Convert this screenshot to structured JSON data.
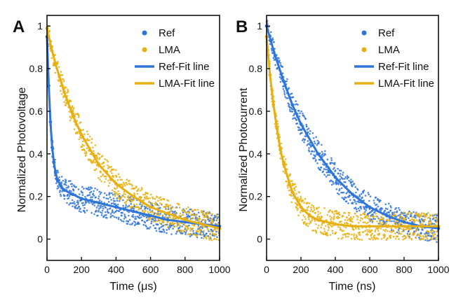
{
  "chart_data": [
    {
      "panel": "A",
      "type": "scatter",
      "xlabel": "Time (μs)",
      "ylabel": "Normalized Photovoltage",
      "xlim": [
        0,
        1000
      ],
      "ylim": [
        -0.1,
        1.05
      ],
      "xticks": [
        0,
        200,
        400,
        600,
        800,
        1000
      ],
      "yticks": [
        0,
        0.2,
        0.4,
        0.6,
        0.8,
        1
      ],
      "legend_position": "top-right",
      "series": [
        {
          "name": "Ref",
          "kind": "scatter",
          "color": "#2f74d9",
          "x": [
            0,
            10,
            20,
            30,
            40,
            50,
            60,
            80,
            100,
            150,
            200,
            300,
            400,
            500,
            600,
            700,
            800,
            900,
            1000
          ],
          "y": [
            0.95,
            0.72,
            0.55,
            0.43,
            0.36,
            0.31,
            0.28,
            0.25,
            0.23,
            0.21,
            0.19,
            0.17,
            0.15,
            0.13,
            0.11,
            0.09,
            0.08,
            0.07,
            0.06
          ]
        },
        {
          "name": "LMA",
          "kind": "scatter",
          "color": "#e6b012",
          "x": [
            0,
            25,
            50,
            100,
            150,
            200,
            300,
            400,
            500,
            600,
            700,
            800,
            900,
            1000
          ],
          "y": [
            0.99,
            0.9,
            0.82,
            0.69,
            0.58,
            0.49,
            0.35,
            0.26,
            0.2,
            0.15,
            0.12,
            0.09,
            0.07,
            0.05
          ]
        },
        {
          "name": "Ref-Fit line",
          "kind": "line",
          "color": "#2f74d9",
          "x": [
            0,
            10,
            20,
            30,
            40,
            50,
            60,
            80,
            100,
            150,
            200,
            300,
            400,
            500,
            600,
            700,
            800,
            900,
            1000
          ],
          "y": [
            0.95,
            0.72,
            0.55,
            0.43,
            0.36,
            0.31,
            0.28,
            0.25,
            0.23,
            0.21,
            0.19,
            0.17,
            0.15,
            0.13,
            0.11,
            0.09,
            0.08,
            0.07,
            0.06
          ]
        },
        {
          "name": "LMA-Fit line",
          "kind": "line",
          "color": "#e6b012",
          "x": [
            0,
            25,
            50,
            100,
            150,
            200,
            300,
            400,
            500,
            600,
            700,
            800,
            900,
            1000
          ],
          "y": [
            0.99,
            0.9,
            0.82,
            0.69,
            0.58,
            0.49,
            0.35,
            0.26,
            0.2,
            0.15,
            0.12,
            0.09,
            0.07,
            0.05
          ]
        }
      ]
    },
    {
      "panel": "B",
      "type": "scatter",
      "xlabel": "Time (ns)",
      "ylabel": "Normalized Photocurrent",
      "xlim": [
        0,
        1000
      ],
      "ylim": [
        -0.1,
        1.05
      ],
      "xticks": [
        0,
        200,
        400,
        600,
        800,
        1000
      ],
      "yticks": [
        0,
        0.2,
        0.4,
        0.6,
        0.8,
        1
      ],
      "legend_position": "top-right",
      "series": [
        {
          "name": "Ref",
          "kind": "scatter",
          "color": "#2f74d9",
          "x": [
            0,
            25,
            50,
            100,
            150,
            200,
            300,
            400,
            500,
            600,
            700,
            800,
            900,
            1000
          ],
          "y": [
            1.0,
            0.93,
            0.86,
            0.74,
            0.63,
            0.54,
            0.4,
            0.29,
            0.21,
            0.15,
            0.11,
            0.08,
            0.06,
            0.05
          ]
        },
        {
          "name": "LMA",
          "kind": "scatter",
          "color": "#e6b012",
          "x": [
            0,
            20,
            40,
            60,
            80,
            100,
            150,
            200,
            250,
            300,
            400,
            500,
            600,
            700,
            800,
            900,
            1000
          ],
          "y": [
            0.95,
            0.77,
            0.63,
            0.52,
            0.42,
            0.35,
            0.22,
            0.15,
            0.11,
            0.09,
            0.07,
            0.06,
            0.06,
            0.06,
            0.06,
            0.06,
            0.06
          ]
        },
        {
          "name": "Ref-Fit line",
          "kind": "line",
          "color": "#2f74d9",
          "x": [
            0,
            25,
            50,
            100,
            150,
            200,
            300,
            400,
            500,
            600,
            700,
            800,
            900,
            1000
          ],
          "y": [
            1.0,
            0.93,
            0.86,
            0.74,
            0.63,
            0.54,
            0.4,
            0.29,
            0.21,
            0.15,
            0.11,
            0.08,
            0.06,
            0.05
          ]
        },
        {
          "name": "LMA-Fit line",
          "kind": "line",
          "color": "#e6b012",
          "x": [
            0,
            20,
            40,
            60,
            80,
            100,
            150,
            200,
            250,
            300,
            400,
            500,
            600,
            700,
            800,
            900,
            1000
          ],
          "y": [
            0.95,
            0.77,
            0.63,
            0.52,
            0.42,
            0.35,
            0.22,
            0.15,
            0.11,
            0.09,
            0.07,
            0.06,
            0.06,
            0.06,
            0.06,
            0.06,
            0.06
          ]
        }
      ]
    }
  ]
}
